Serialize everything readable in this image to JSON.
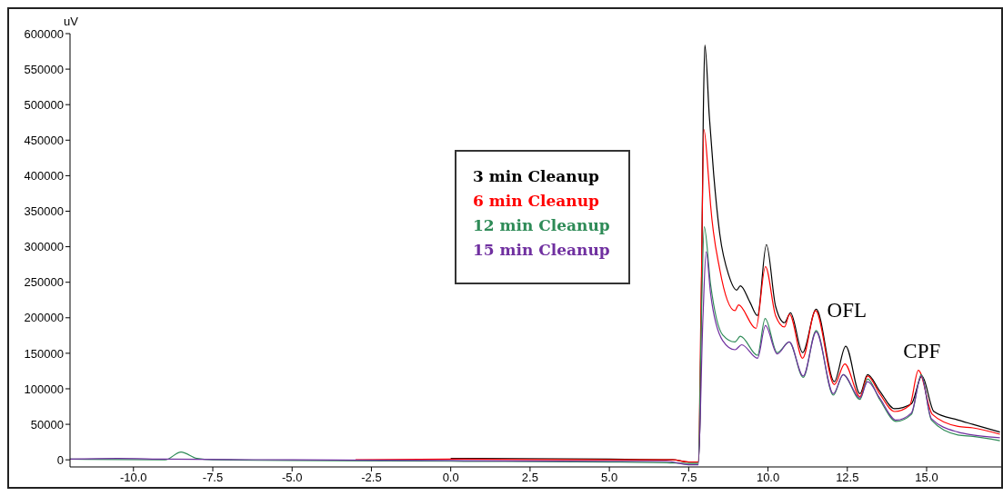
{
  "chart_data": {
    "type": "line",
    "ylabel": "uV",
    "xlim": [
      -12,
      17.35
    ],
    "ylim": [
      -10000,
      600000
    ],
    "xticks": [
      {
        "value": -10,
        "label": "-10.0"
      },
      {
        "value": -7.5,
        "label": "-7.5"
      },
      {
        "value": -5,
        "label": "-5.0"
      },
      {
        "value": -2.5,
        "label": "-2.5"
      },
      {
        "value": 0,
        "label": "0.0"
      },
      {
        "value": 2.5,
        "label": "2.5"
      },
      {
        "value": 5,
        "label": "5.0"
      },
      {
        "value": 7.5,
        "label": "7.5"
      },
      {
        "value": 10,
        "label": "10.0"
      },
      {
        "value": 12.5,
        "label": "12.5"
      },
      {
        "value": 15,
        "label": "15.0"
      }
    ],
    "yticks": [
      0,
      50000,
      100000,
      150000,
      200000,
      250000,
      300000,
      350000,
      400000,
      450000,
      500000,
      550000,
      600000
    ],
    "legend": "top",
    "marker": "none",
    "line_style": "solid",
    "annotations": [
      {
        "text": "OFL",
        "x": 11.52,
        "y": 212000
      },
      {
        "text": "CPF",
        "x": 14.85,
        "y": 126000
      }
    ],
    "series": [
      {
        "name": "3 min Cleanup",
        "color": "#000000",
        "x": [
          0,
          5,
          7,
          7.5,
          7.8,
          7.86,
          7.96,
          8.01,
          8.15,
          8.29,
          8.48,
          8.77,
          9.01,
          9.13,
          9.43,
          9.67,
          9.95,
          10.24,
          10.52,
          10.71,
          11.09,
          11.52,
          12.09,
          12.45,
          12.9,
          13.14,
          13.52,
          13.99,
          14.52,
          14.85,
          15.23,
          15.99,
          16.46,
          17.31
        ],
        "values": [
          2000,
          1000,
          0,
          -3000,
          -3000,
          60000,
          484000,
          584000,
          484000,
          401000,
          318000,
          259000,
          239000,
          245000,
          222000,
          203000,
          303000,
          216000,
          193000,
          207000,
          151000,
          212000,
          110000,
          160000,
          93000,
          120000,
          97000,
          72000,
          79000,
          118000,
          68000,
          56000,
          50000,
          39000
        ]
      },
      {
        "name": "6 min Cleanup",
        "color": "#ff0000",
        "x": [
          -3,
          0,
          5,
          7,
          7.5,
          7.8,
          7.9,
          7.98,
          8.12,
          8.19,
          8.48,
          8.96,
          9.07,
          9.62,
          9.92,
          10.24,
          10.52,
          10.68,
          11.09,
          11.5,
          12.09,
          12.42,
          12.9,
          13.14,
          13.52,
          13.99,
          14.47,
          14.74,
          15.18,
          15.99,
          16.46,
          17.31
        ],
        "values": [
          0,
          1000,
          0,
          0,
          -3000,
          -3000,
          250000,
          465000,
          401000,
          359000,
          268000,
          210000,
          218000,
          185000,
          272000,
          203000,
          187000,
          205000,
          143000,
          210000,
          106000,
          135000,
          89000,
          118000,
          93000,
          68000,
          77000,
          126000,
          64000,
          47000,
          45000,
          36000
        ]
      },
      {
        "name": "12 min Cleanup",
        "color": "#2e8b57",
        "x": [
          -12,
          -9,
          -8.5,
          -8,
          -7.5,
          -5,
          0,
          5,
          6.8,
          7.5,
          7.8,
          7.9,
          7.99,
          8.19,
          8.57,
          8.96,
          9.13,
          9.67,
          9.91,
          10.29,
          10.67,
          11.11,
          11.52,
          12.06,
          12.37,
          12.9,
          13.14,
          13.52,
          14.04,
          14.52,
          14.83,
          15.15,
          15.99,
          16.46,
          17.31
        ],
        "values": [
          1000,
          0,
          11000,
          2000,
          0,
          -1000,
          -2000,
          -3000,
          -4000,
          -5000,
          -5000,
          200000,
          328000,
          247000,
          176000,
          166000,
          174000,
          147000,
          199000,
          151000,
          166000,
          116000,
          182000,
          91000,
          120000,
          85000,
          114000,
          85000,
          54000,
          64000,
          120000,
          56000,
          35000,
          33000,
          27000
        ]
      },
      {
        "name": "15 min Cleanup",
        "color": "#7030a0",
        "x": [
          -12,
          -10.5,
          -9,
          -5,
          0,
          5,
          6.8,
          7.5,
          7.8,
          7.95,
          8.05,
          8.19,
          8.57,
          8.96,
          9.17,
          9.67,
          9.92,
          10.29,
          10.67,
          11.11,
          11.52,
          12.06,
          12.37,
          12.9,
          13.14,
          13.52,
          14.04,
          14.52,
          14.83,
          15.15,
          15.99,
          16.46,
          17.31
        ],
        "values": [
          1000,
          2000,
          1000,
          0,
          -1000,
          -2000,
          -2000,
          -7000,
          -7000,
          200000,
          293000,
          234000,
          168000,
          155000,
          162000,
          143000,
          189000,
          149000,
          166000,
          118000,
          180000,
          93000,
          120000,
          87000,
          110000,
          87000,
          56000,
          66000,
          118000,
          58000,
          39000,
          35000,
          31000
        ]
      }
    ]
  }
}
